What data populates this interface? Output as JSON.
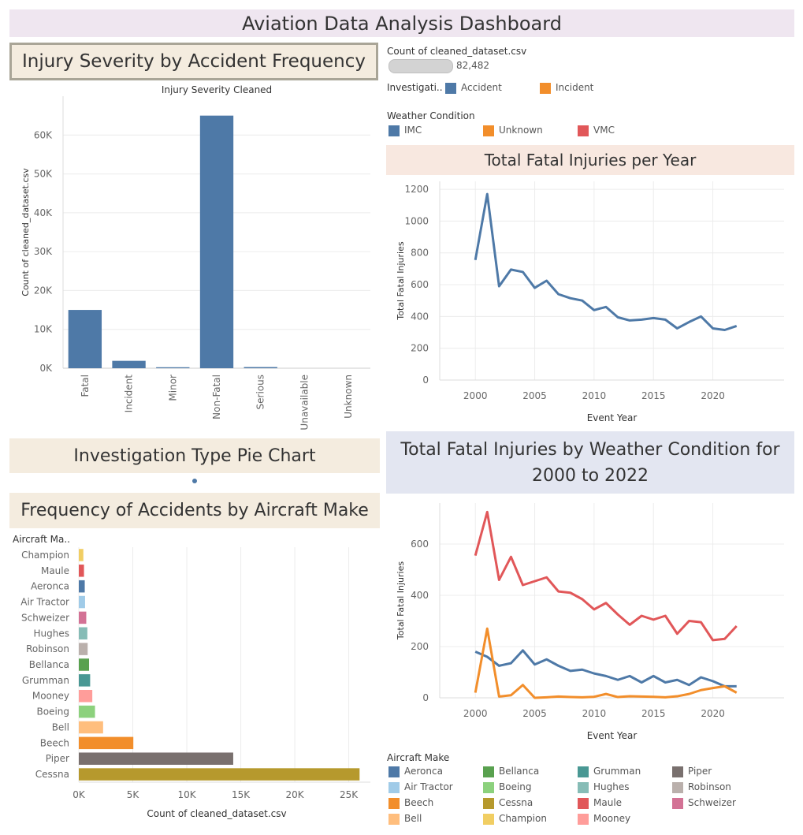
{
  "dashboard_title": "Aviation Data Analysis Dashboard",
  "colors": {
    "blue": "#4e79a7",
    "orange": "#f28e2b",
    "red": "#e15759",
    "title_bg_purple": "#efe6f0",
    "title_bg_beige": "#f4ecdf",
    "title_bg_peach": "#f8e8e0",
    "title_bg_lavender": "#e3e6f1"
  },
  "panels": {
    "severity_title": "Injury Severity by Accident Frequency",
    "pie_title": "Investigation Type Pie Chart",
    "make_title": "Frequency of Accidents by Aircraft Make",
    "year_title": "Total Fatal Injuries per Year",
    "weather_title_line1": "Total Fatal Injuries by Weather Condition for",
    "weather_title_line2": "2000 to 2022"
  },
  "count_card": {
    "label": "Count of cleaned_dataset.csv",
    "value": "82,482"
  },
  "investigation_legend": {
    "title": "Investigati..",
    "items": [
      {
        "label": "Accident",
        "color": "#4e79a7"
      },
      {
        "label": "Incident",
        "color": "#f28e2b"
      }
    ]
  },
  "weather_legend": {
    "title": "Weather Condition",
    "items": [
      {
        "label": "IMC",
        "color": "#4e79a7"
      },
      {
        "label": "Unknown",
        "color": "#f28e2b"
      },
      {
        "label": "VMC",
        "color": "#e15759"
      }
    ]
  },
  "make_legend": {
    "title": "Aircraft Make",
    "items": [
      {
        "label": "Aeronca",
        "color": "#4e79a7"
      },
      {
        "label": "Bellanca",
        "color": "#59a14f"
      },
      {
        "label": "Grumman",
        "color": "#499894"
      },
      {
        "label": "Piper",
        "color": "#79706e"
      },
      {
        "label": "Air Tractor",
        "color": "#a0cbe8"
      },
      {
        "label": "Boeing",
        "color": "#8cd17d"
      },
      {
        "label": "Hughes",
        "color": "#86bcb6"
      },
      {
        "label": "Robinson",
        "color": "#bab0ac"
      },
      {
        "label": "Beech",
        "color": "#f28e2b"
      },
      {
        "label": "Cessna",
        "color": "#b6992d"
      },
      {
        "label": "Maule",
        "color": "#e15759"
      },
      {
        "label": "Schweizer",
        "color": "#d37295"
      },
      {
        "label": "Bell",
        "color": "#ffbe7d"
      },
      {
        "label": "Champion",
        "color": "#f1ce63"
      },
      {
        "label": "Mooney",
        "color": "#ff9d9a"
      }
    ]
  },
  "chart_data": [
    {
      "id": "severity",
      "type": "bar",
      "title": "Injury Severity Cleaned",
      "xlabel": "",
      "ylabel": "Count of cleaned_dataset.csv",
      "categories": [
        "Fatal",
        "Incident",
        "Minor",
        "Non-Fatal",
        "Serious",
        "Unavailable",
        "Unknown"
      ],
      "values": [
        15000,
        1900,
        250,
        65000,
        300,
        0,
        0
      ],
      "ylim": [
        0,
        70000
      ],
      "yticks": [
        0,
        10000,
        20000,
        30000,
        40000,
        50000,
        60000
      ],
      "ytick_labels": [
        "0K",
        "10K",
        "20K",
        "30K",
        "40K",
        "50K",
        "60K"
      ],
      "color": "#4e79a7",
      "grid": true
    },
    {
      "id": "make",
      "type": "bar",
      "orientation": "horizontal",
      "xlabel": "Count of cleaned_dataset.csv",
      "ylabel": "Aircraft Ma..",
      "categories": [
        "Champion",
        "Maule",
        "Aeronca",
        "Air Tractor",
        "Schweizer",
        "Hughes",
        "Robinson",
        "Bellanca",
        "Grumman",
        "Mooney",
        "Boeing",
        "Bell",
        "Beech",
        "Piper",
        "Cessna"
      ],
      "values": [
        420,
        480,
        550,
        580,
        690,
        790,
        820,
        950,
        1050,
        1250,
        1500,
        2250,
        5050,
        14300,
        26000
      ],
      "colors": [
        "#f1ce63",
        "#e15759",
        "#4e79a7",
        "#a0cbe8",
        "#d37295",
        "#86bcb6",
        "#bab0ac",
        "#59a14f",
        "#499894",
        "#ff9d9a",
        "#8cd17d",
        "#ffbe7d",
        "#f28e2b",
        "#79706e",
        "#b6992d"
      ],
      "xlim": [
        0,
        27000
      ],
      "xticks": [
        0,
        5000,
        10000,
        15000,
        20000,
        25000
      ],
      "xtick_labels": [
        "0K",
        "5K",
        "10K",
        "15K",
        "20K",
        "25K"
      ],
      "grid": true
    },
    {
      "id": "year",
      "type": "line",
      "xlabel": "Event Year",
      "ylabel": "Total Fatal Injuries",
      "x": [
        2000,
        2001,
        2002,
        2003,
        2004,
        2005,
        2006,
        2007,
        2008,
        2009,
        2010,
        2011,
        2012,
        2013,
        2014,
        2015,
        2016,
        2017,
        2018,
        2019,
        2020,
        2021,
        2022
      ],
      "series": [
        {
          "values": [
            755,
            1170,
            590,
            695,
            680,
            580,
            625,
            540,
            515,
            500,
            440,
            460,
            395,
            375,
            380,
            390,
            380,
            325,
            365,
            400,
            325,
            315,
            340
          ],
          "color": "#4e79a7"
        }
      ],
      "xlim": [
        1997,
        2026
      ],
      "ylim": [
        0,
        1250
      ],
      "xticks": [
        2000,
        2005,
        2010,
        2015,
        2020
      ],
      "yticks": [
        0,
        200,
        400,
        600,
        800,
        1000,
        1200
      ],
      "grid": true
    },
    {
      "id": "weather",
      "type": "line",
      "xlabel": "Event Year",
      "ylabel": "Total Fatal Injuries",
      "x": [
        2000,
        2001,
        2002,
        2003,
        2004,
        2005,
        2006,
        2007,
        2008,
        2009,
        2010,
        2011,
        2012,
        2013,
        2014,
        2015,
        2016,
        2017,
        2018,
        2019,
        2020,
        2021,
        2022
      ],
      "series": [
        {
          "name": "VMC",
          "color": "#e15759",
          "values": [
            555,
            725,
            460,
            550,
            440,
            455,
            470,
            415,
            410,
            385,
            345,
            370,
            325,
            285,
            320,
            305,
            320,
            250,
            300,
            295,
            225,
            230,
            280
          ]
        },
        {
          "name": "IMC",
          "color": "#4e79a7",
          "values": [
            180,
            160,
            125,
            135,
            185,
            130,
            150,
            125,
            105,
            110,
            95,
            85,
            70,
            85,
            60,
            85,
            60,
            70,
            50,
            80,
            65,
            45,
            45
          ]
        },
        {
          "name": "Unknown",
          "color": "#f28e2b",
          "values": [
            20,
            270,
            5,
            10,
            50,
            0,
            2,
            5,
            3,
            2,
            4,
            15,
            3,
            6,
            5,
            4,
            2,
            6,
            15,
            30,
            38,
            45,
            20
          ]
        }
      ],
      "xlim": [
        1997,
        2026
      ],
      "ylim": [
        0,
        760
      ],
      "xticks": [
        2000,
        2005,
        2010,
        2015,
        2020
      ],
      "yticks": [
        0,
        200,
        400,
        600
      ],
      "grid": true
    }
  ]
}
